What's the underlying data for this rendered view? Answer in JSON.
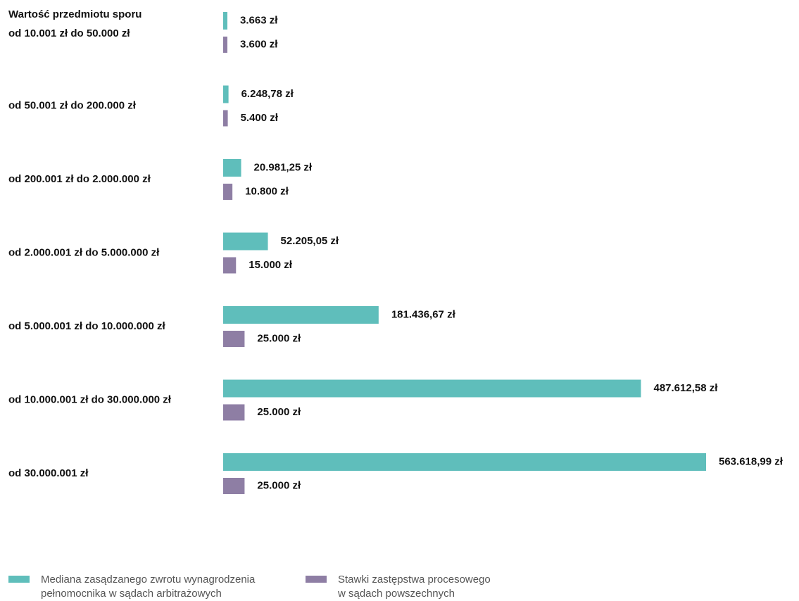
{
  "chart_data": {
    "type": "bar",
    "orientation": "horizontal",
    "header_label": "Wartość przedmiotu sporu",
    "categories": [
      "od 10.001 zł do 50.000 zł",
      "od 50.001 zł do 200.000 zł",
      "od 200.001 zł do 2.000.000 zł",
      "od 2.000.001 zł do 5.000.000 zł",
      "od 5.000.001 zł do 10.000.000 zł",
      "od 10.000.001 zł do 30.000.000 zł",
      "od 30.000.001 zł"
    ],
    "series": [
      {
        "name": "Mediana zasądzanego zwrotu wynagrodzenia\npełnomocnika w sądach arbitrażowych",
        "color": "#5fbebb",
        "values": [
          3663,
          6248.78,
          20981.25,
          52205.05,
          181436.67,
          487612.58,
          563618.99
        ],
        "labels": [
          "3.663 zł",
          "6.248,78 zł",
          "20.981,25 zł",
          "52.205,05 zł",
          "181.436,67 zł",
          "487.612,58 zł",
          "563.618,99 zł"
        ]
      },
      {
        "name": "Stawki zastępstwa procesowego\nw sądach powszechnych",
        "color": "#8e7ea4",
        "values": [
          3600,
          5400,
          10800,
          15000,
          25000,
          25000,
          25000
        ],
        "labels": [
          "3.600 zł",
          "5.400 zł",
          "10.800 zł",
          "15.000 zł",
          "25.000 zł",
          "25.000 zł",
          "25.000 zł"
        ]
      }
    ],
    "legend_position": "bottom-left",
    "grid": false,
    "axes_visible": false
  }
}
